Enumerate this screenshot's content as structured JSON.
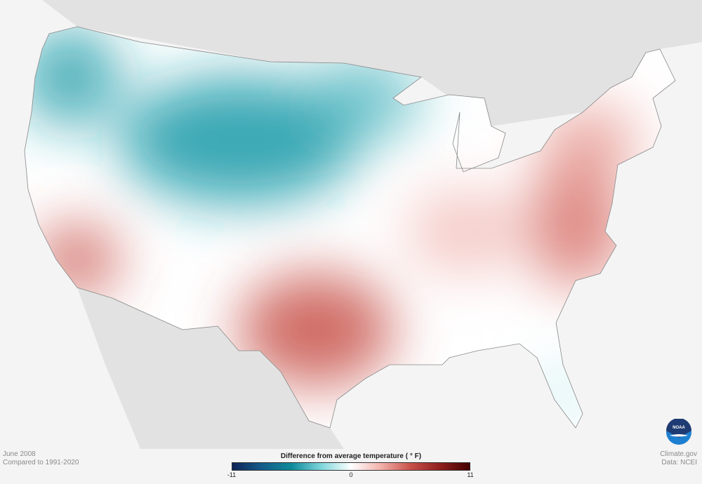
{
  "map": {
    "region": "Contiguous United States",
    "variable": "temperature anomaly",
    "colors": {
      "cold": "#0f8a9a",
      "warm": "#c8524a",
      "neutral": "#ffffff",
      "land_outside": "#e2e2e2",
      "background": "#f4f4f4"
    }
  },
  "caption": {
    "period": "June 2008",
    "baseline": "Compared to 1991-2020"
  },
  "legend": {
    "title": "Difference from average temperature  ( ° F)",
    "min": "-11",
    "mid": "0",
    "max": "11"
  },
  "credits": {
    "source": "Climate.gov",
    "data": "Data: NCEI",
    "logo": "NOAA"
  }
}
